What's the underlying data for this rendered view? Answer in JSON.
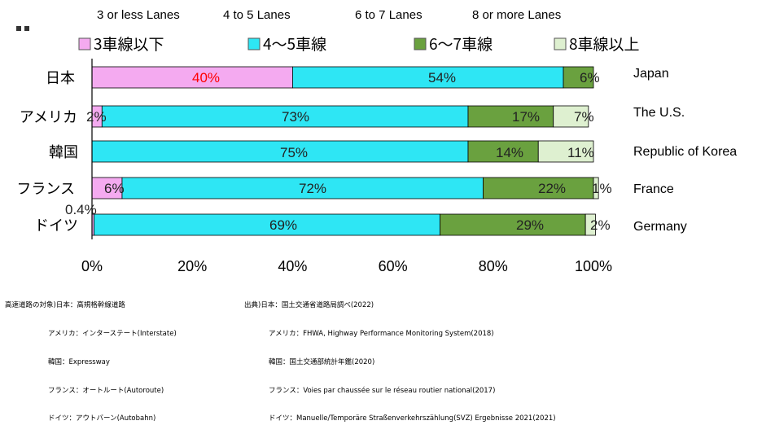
{
  "legend_en": [
    "3 or less Lanes",
    "4 to 5 Lanes",
    "6 to 7 Lanes",
    "8 or more Lanes"
  ],
  "countries_en": [
    "Japan",
    "The U.S.",
    "Republic of Korea",
    "France",
    "Germany"
  ],
  "notes_left": [
    "高速道路の対象)日本：高規格幹線道路",
    "アメリカ：インターステート(Interstate)",
    "韓国：Expressway",
    "フランス：オートルート(Autoroute)",
    "ドイツ：アウトバーン(Autobahn)"
  ],
  "notes_right": [
    "出典)日本：国土交通省道路局調べ(2022)",
    "アメリカ：FHWA, Highway Performance Monitoring System(2018)",
    "韓国：国土交通部統計年鑑(2020)",
    "フランス：Voies par chaussée sur le réseau routier national(2017)",
    "ドイツ：Manuelle/Temporäre Straßenverkehrszählung(SVZ) Ergebnisse 2021(2021)"
  ],
  "colors": {
    "lanes_3_or_less": "#f4aaf0",
    "lanes_4_to_5": "#2ee6f4",
    "lanes_6_to_7": "#6aa13f",
    "lanes_8_or_more": "#def0d0",
    "japan_first_label": "#ff0000"
  },
  "chart_data": {
    "type": "bar",
    "orientation": "horizontal",
    "stacked": true,
    "legend_position": "top",
    "categories": [
      "日本",
      "アメリカ",
      "韓国",
      "フランス",
      "ドイツ"
    ],
    "series": [
      {
        "name": "3車線以下",
        "values": [
          40,
          2,
          0,
          6,
          0.4
        ],
        "labels": [
          "40%",
          "2%",
          "",
          "6%",
          "0.4%"
        ]
      },
      {
        "name": "4～5車線",
        "values": [
          54,
          73,
          75,
          72,
          69
        ],
        "labels": [
          "54%",
          "73%",
          "75%",
          "72%",
          "69%"
        ]
      },
      {
        "name": "6～7車線",
        "values": [
          6,
          17,
          14,
          22,
          29
        ],
        "labels": [
          "6%",
          "17%",
          "14%",
          "22%",
          "29%"
        ]
      },
      {
        "name": "8車線以上",
        "values": [
          0,
          7,
          11,
          1,
          2
        ],
        "labels": [
          "",
          "7%",
          "11%",
          "1%",
          "2%"
        ]
      }
    ],
    "x_ticks": [
      "0%",
      "20%",
      "40%",
      "60%",
      "80%",
      "100%"
    ],
    "xlim": [
      0,
      100
    ],
    "grid": false
  }
}
